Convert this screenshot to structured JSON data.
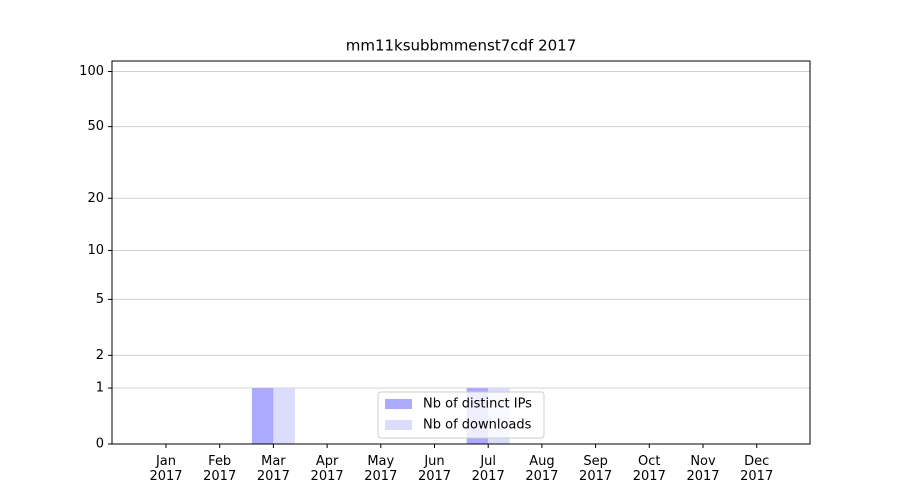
{
  "chart_data": {
    "type": "bar",
    "title": "mm11ksubbmmenst7cdf 2017",
    "categories": [
      "Jan 2017",
      "Feb 2017",
      "Mar 2017",
      "Apr 2017",
      "May 2017",
      "Jun 2017",
      "Jul 2017",
      "Aug 2017",
      "Sep 2017",
      "Oct 2017",
      "Nov 2017",
      "Dec 2017"
    ],
    "series": [
      {
        "name": "Nb of distinct IPs",
        "color": "#aaaaff",
        "values": [
          0,
          0,
          1,
          0,
          0,
          0,
          1,
          0,
          0,
          0,
          0,
          0
        ]
      },
      {
        "name": "Nb of downloads",
        "color": "#dcdcfc",
        "values": [
          0,
          0,
          1,
          0,
          0,
          0,
          1,
          0,
          0,
          0,
          0,
          0
        ]
      }
    ],
    "yscale": "log1p",
    "ylim": [
      0,
      114
    ],
    "yticks": [
      0,
      1,
      2,
      5,
      10,
      20,
      50,
      100
    ],
    "grid": true,
    "legend": "lower center"
  }
}
